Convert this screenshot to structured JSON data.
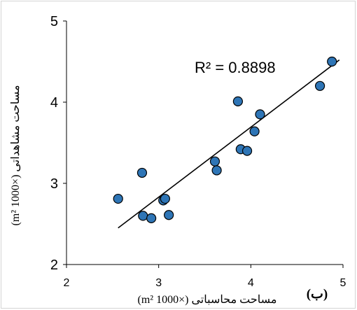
{
  "chart_data": {
    "type": "scatter",
    "title": "",
    "panel_label": "(ب)",
    "xlabel": "مساحت محاسباتی (×1000 m²)",
    "ylabel": "مساحت مشاهداتی (×1000 m²)",
    "xlim": [
      2,
      5
    ],
    "ylim": [
      2,
      5
    ],
    "x_ticks": [
      "2",
      "3",
      "4",
      "5"
    ],
    "y_ticks": [
      "2",
      "3",
      "4",
      "5"
    ],
    "grid": false,
    "legend": "none",
    "annotation": "R² = 0.8898",
    "points": [
      {
        "x": 2.56,
        "y": 2.81
      },
      {
        "x": 2.82,
        "y": 3.13
      },
      {
        "x": 2.83,
        "y": 2.6
      },
      {
        "x": 2.92,
        "y": 2.57
      },
      {
        "x": 3.05,
        "y": 2.79
      },
      {
        "x": 3.07,
        "y": 2.81
      },
      {
        "x": 3.11,
        "y": 2.61
      },
      {
        "x": 3.61,
        "y": 3.27
      },
      {
        "x": 3.63,
        "y": 3.16
      },
      {
        "x": 3.86,
        "y": 4.01
      },
      {
        "x": 3.89,
        "y": 3.42
      },
      {
        "x": 3.96,
        "y": 3.4
      },
      {
        "x": 4.04,
        "y": 3.64
      },
      {
        "x": 4.1,
        "y": 3.85
      },
      {
        "x": 4.75,
        "y": 4.2
      },
      {
        "x": 4.88,
        "y": 4.5
      }
    ],
    "trendline": {
      "x": [
        2.56,
        4.96
      ],
      "y": [
        2.45,
        4.52
      ]
    },
    "colors": {
      "marker_fill": "#2e75b6",
      "marker_stroke": "#000000",
      "line": "#000000",
      "axis": "#000000"
    }
  }
}
